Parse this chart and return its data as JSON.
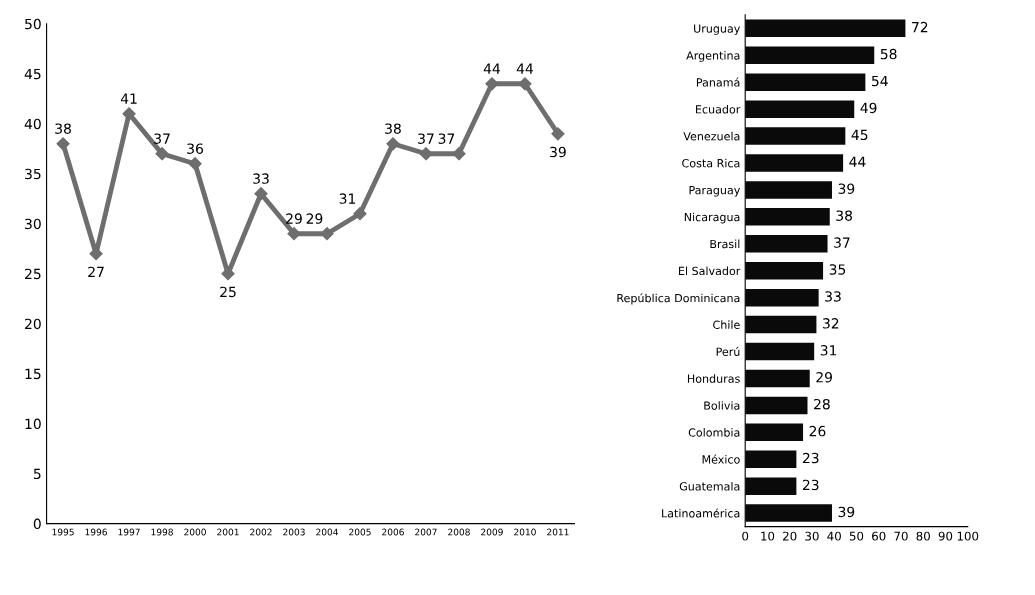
{
  "chart_data": [
    {
      "type": "line",
      "categories": [
        "1995",
        "1996",
        "1997",
        "1998",
        "2000",
        "2001",
        "2002",
        "2003",
        "2004",
        "2005",
        "2006",
        "2007",
        "2008",
        "2009",
        "2010",
        "2011"
      ],
      "series": [
        {
          "color": "#6e6e6e",
          "values": [
            38,
            27,
            41,
            37,
            36,
            25,
            33,
            29,
            29,
            31,
            38,
            37,
            37,
            44,
            44,
            39
          ]
        }
      ],
      "ylim": [
        0,
        50
      ],
      "yticks": [
        0,
        5,
        10,
        15,
        20,
        25,
        30,
        35,
        40,
        45,
        50
      ],
      "data_labels": true,
      "marker": "diamond",
      "line_style": "solid",
      "grid": false,
      "legend": false
    },
    {
      "type": "bar",
      "orientation": "horizontal",
      "categories": [
        "Uruguay",
        "Argentina",
        "Panamá",
        "Ecuador",
        "Venezuela",
        "Costa Rica",
        "Paraguay",
        "Nicaragua",
        "Brasil",
        "El Salvador",
        "República Dominicana",
        "Chile",
        "Perú",
        "Honduras",
        "Bolivia",
        "Colombia",
        "México",
        "Guatemala",
        "Latinoamérica"
      ],
      "values": [
        72,
        58,
        54,
        49,
        45,
        44,
        39,
        38,
        37,
        35,
        33,
        32,
        31,
        29,
        28,
        26,
        23,
        23,
        39
      ],
      "color": "#0a0a0a",
      "xlim": [
        0,
        100
      ],
      "xticks": [
        0,
        10,
        20,
        30,
        40,
        50,
        60,
        70,
        80,
        90,
        100
      ],
      "data_labels": true,
      "grid": false,
      "legend": false
    }
  ]
}
